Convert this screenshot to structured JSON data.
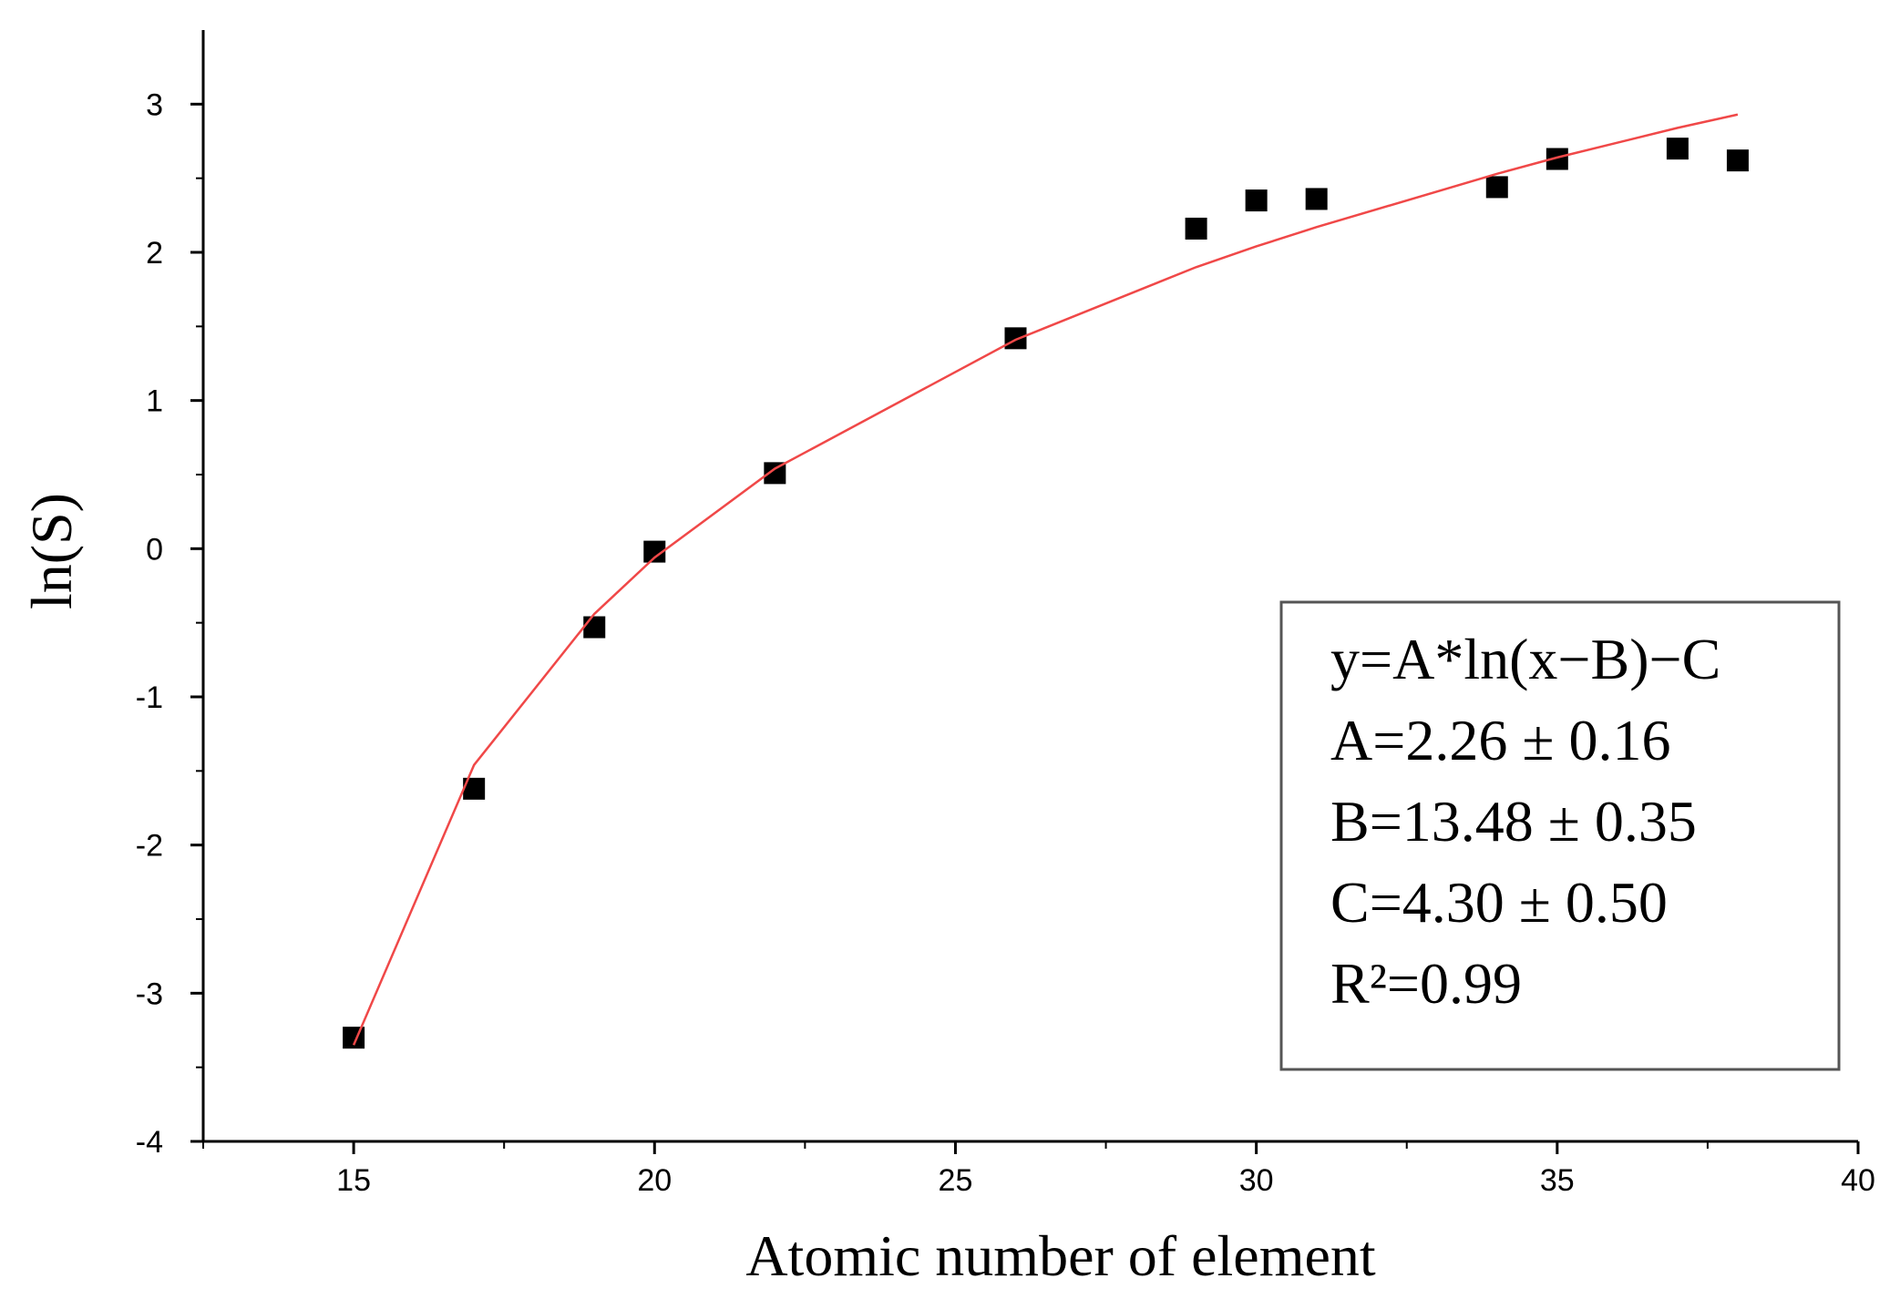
{
  "chart_data": {
    "type": "scatter",
    "xlabel": "Atomic number of element",
    "ylabel": "ln(S)",
    "xlim": [
      12.5,
      40
    ],
    "xticks": [
      15,
      20,
      25,
      30,
      35,
      40
    ],
    "ylim": [
      -4,
      3.5
    ],
    "yticks": [
      -4,
      -3,
      -2,
      -1,
      0,
      1,
      2,
      3
    ],
    "series": [
      {
        "kind": "markers",
        "color": "#000000",
        "x": [
          15,
          17,
          19,
          20,
          22,
          26,
          29,
          30,
          31,
          34,
          35,
          37,
          38
        ],
        "values": [
          -3.3,
          -1.62,
          -0.53,
          -0.02,
          0.51,
          1.42,
          2.16,
          2.35,
          2.36,
          2.44,
          2.63,
          2.7,
          2.62
        ]
      },
      {
        "kind": "line",
        "color": "#f04848",
        "x": [
          15,
          17,
          19,
          20,
          22,
          26,
          29,
          30,
          31,
          34,
          35,
          37,
          38
        ],
        "values": [
          -3.35,
          -1.46,
          -0.44,
          -0.06,
          0.54,
          1.41,
          1.9,
          2.04,
          2.17,
          2.53,
          2.64,
          2.84,
          2.93
        ]
      }
    ],
    "annotation": [
      "y=A*ln(x−B)−C",
      "A=2.26 ± 0.16",
      "B=13.48 ± 0.35",
      "C=4.30 ± 0.50",
      "R²=0.99"
    ]
  }
}
